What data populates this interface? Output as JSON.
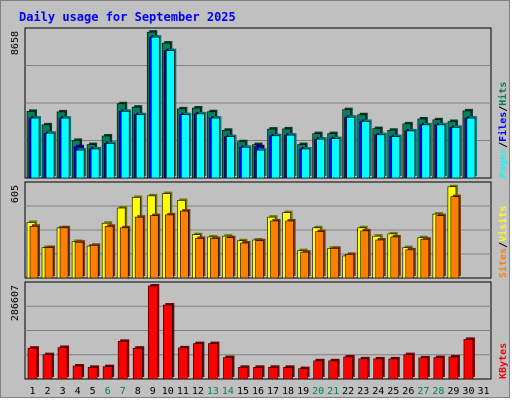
{
  "title": "Daily usage for September 2025",
  "colors": {
    "background": "#c0c0c0",
    "panel": "#c0c0c0",
    "title": "#0000ff",
    "hits": "#00805c",
    "files": "#0000ff",
    "pages": "#00ffff",
    "visits": "#ffff00",
    "sites": "#ff8000",
    "kbytes": "#ff0000",
    "weekend": "#00805c",
    "weekday": "#000000",
    "gridline": "#808080",
    "sep_white": "#ffffff"
  },
  "chart_data": {
    "type": "bar",
    "title": "Daily usage for September 2025",
    "categories": [
      "1",
      "2",
      "3",
      "4",
      "5",
      "6",
      "7",
      "8",
      "9",
      "10",
      "11",
      "12",
      "13",
      "14",
      "15",
      "16",
      "17",
      "18",
      "19",
      "20",
      "21",
      "22",
      "23",
      "24",
      "25",
      "26",
      "27",
      "28",
      "29",
      "30",
      "31"
    ],
    "weekend_days": [
      6,
      7,
      13,
      14,
      20,
      21,
      27,
      28
    ],
    "panels": [
      {
        "name": "hits-files-pages",
        "max_label": "8658",
        "ymax": 8658,
        "legend": [
          {
            "text": "Pages",
            "color": "#00ffff"
          },
          {
            "text": "/",
            "color": "#000000"
          },
          {
            "text": "Files",
            "color": "#0000ff"
          },
          {
            "text": "/",
            "color": "#000000"
          },
          {
            "text": "Hits",
            "color": "#00805c"
          }
        ],
        "series": [
          {
            "name": "Hits",
            "values": [
              3950,
              3150,
              3920,
              2230,
              1980,
              2490,
              4400,
              4200,
              8650,
              8000,
              4100,
              4150,
              3930,
              2830,
              2150,
              1980,
              2900,
              2910,
              1980,
              2630,
              2630,
              4050,
              3750,
              2930,
              2830,
              3210,
              3500,
              3450,
              3350,
              3980,
              0
            ]
          },
          {
            "name": "Files",
            "values": [
              3550,
              2650,
              3550,
              1850,
              1720,
              2050,
              3950,
              3750,
              8350,
              7550,
              3750,
              3800,
              3550,
              2450,
              1820,
              1850,
              2500,
              2540,
              1720,
              2300,
              2330,
              3600,
              3350,
              2560,
              2450,
              2790,
              3150,
              3150,
              3000,
              3550,
              0
            ]
          },
          {
            "name": "Pages",
            "values": [
              3550,
              2650,
              3550,
              1650,
              1720,
              2050,
              3950,
              3750,
              8350,
              7550,
              3750,
              3800,
              3550,
              2450,
              1820,
              1650,
              2500,
              2540,
              1720,
              2300,
              2330,
              3600,
              3350,
              2560,
              2450,
              2790,
              3150,
              3150,
              3000,
              3550,
              0
            ]
          }
        ]
      },
      {
        "name": "visits-sites",
        "max_label": "605",
        "ymax": 605,
        "legend": [
          {
            "text": "Sites",
            "color": "#ff8000"
          },
          {
            "text": "/",
            "color": "#000000"
          },
          {
            "text": "Visits",
            "color": "#ffff00"
          }
        ],
        "series": [
          {
            "name": "Visits",
            "values": [
              365,
              200,
              330,
              240,
              210,
              360,
              460,
              530,
              540,
              555,
              510,
              285,
              270,
              275,
              245,
              250,
              400,
              430,
              180,
              330,
              195,
              145,
              330,
              275,
              290,
              200,
              265,
              420,
              600,
              0,
              0
            ]
          },
          {
            "name": "Sites",
            "values": [
              340,
              200,
              330,
              235,
              215,
              340,
              330,
              400,
              410,
              415,
              440,
              260,
              260,
              265,
              230,
              245,
              375,
              375,
              170,
              305,
              195,
              155,
              310,
              250,
              270,
              185,
              255,
              410,
              535,
              0,
              0
            ]
          }
        ]
      },
      {
        "name": "kbytes",
        "max_label": "286607",
        "ymax": 286607,
        "legend": [
          {
            "text": "KBytes",
            "color": "#ff0000"
          }
        ],
        "series": [
          {
            "name": "KBytes",
            "values": [
              95000,
              75000,
              97000,
              40000,
              36000,
              38000,
              116000,
              95000,
              286600,
              228000,
              96000,
              109000,
              109000,
              66000,
              36000,
              36000,
              36000,
              36000,
              32000,
              56000,
              56000,
              68000,
              62000,
              62000,
              62000,
              75000,
              65000,
              66000,
              68000,
              122000,
              0
            ]
          }
        ]
      }
    ]
  }
}
